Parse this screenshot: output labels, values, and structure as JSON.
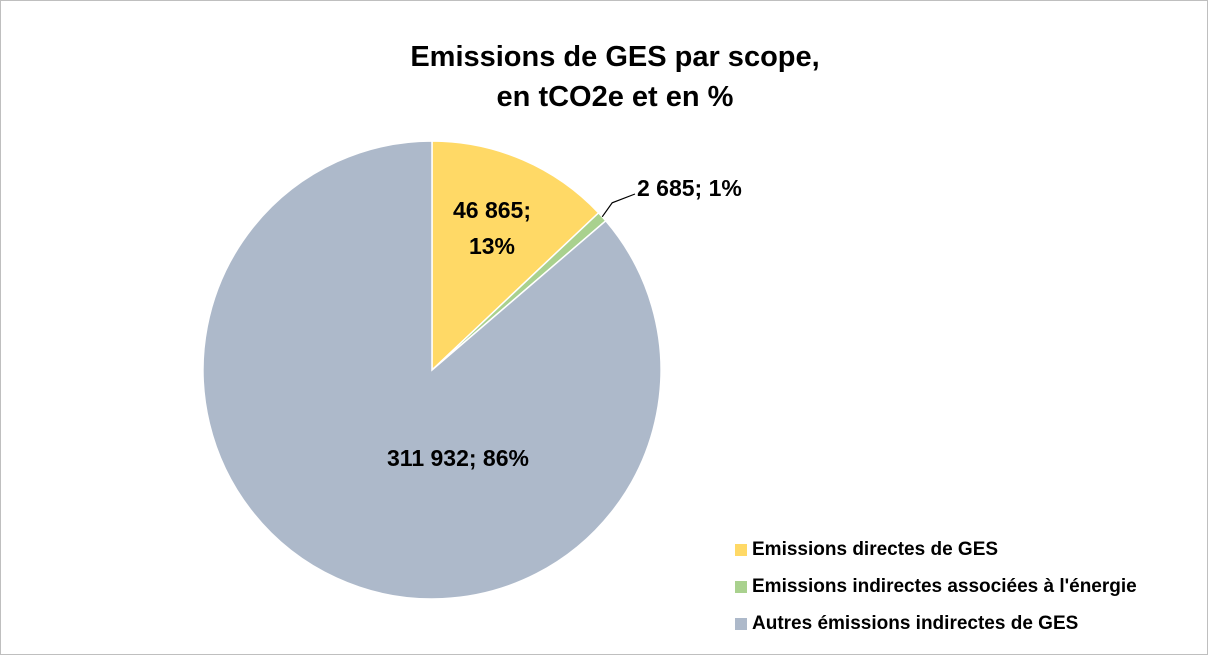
{
  "chart_data": {
    "type": "pie",
    "title": "Emissions de GES par scope,\nen tCO2e et en %",
    "categories": [
      "Emissions directes de GES",
      "Emissions indirectes associées à l'énergie",
      "Autres émissions indirectes de GES"
    ],
    "values": [
      46865,
      2685,
      311932
    ],
    "value_labels": [
      "46 865;\n13%",
      "2 685; 1%",
      "311 932; 86%"
    ],
    "colors": [
      "#ffd966",
      "#a9d18e",
      "#adb9ca"
    ],
    "legend": "bottom-right"
  }
}
